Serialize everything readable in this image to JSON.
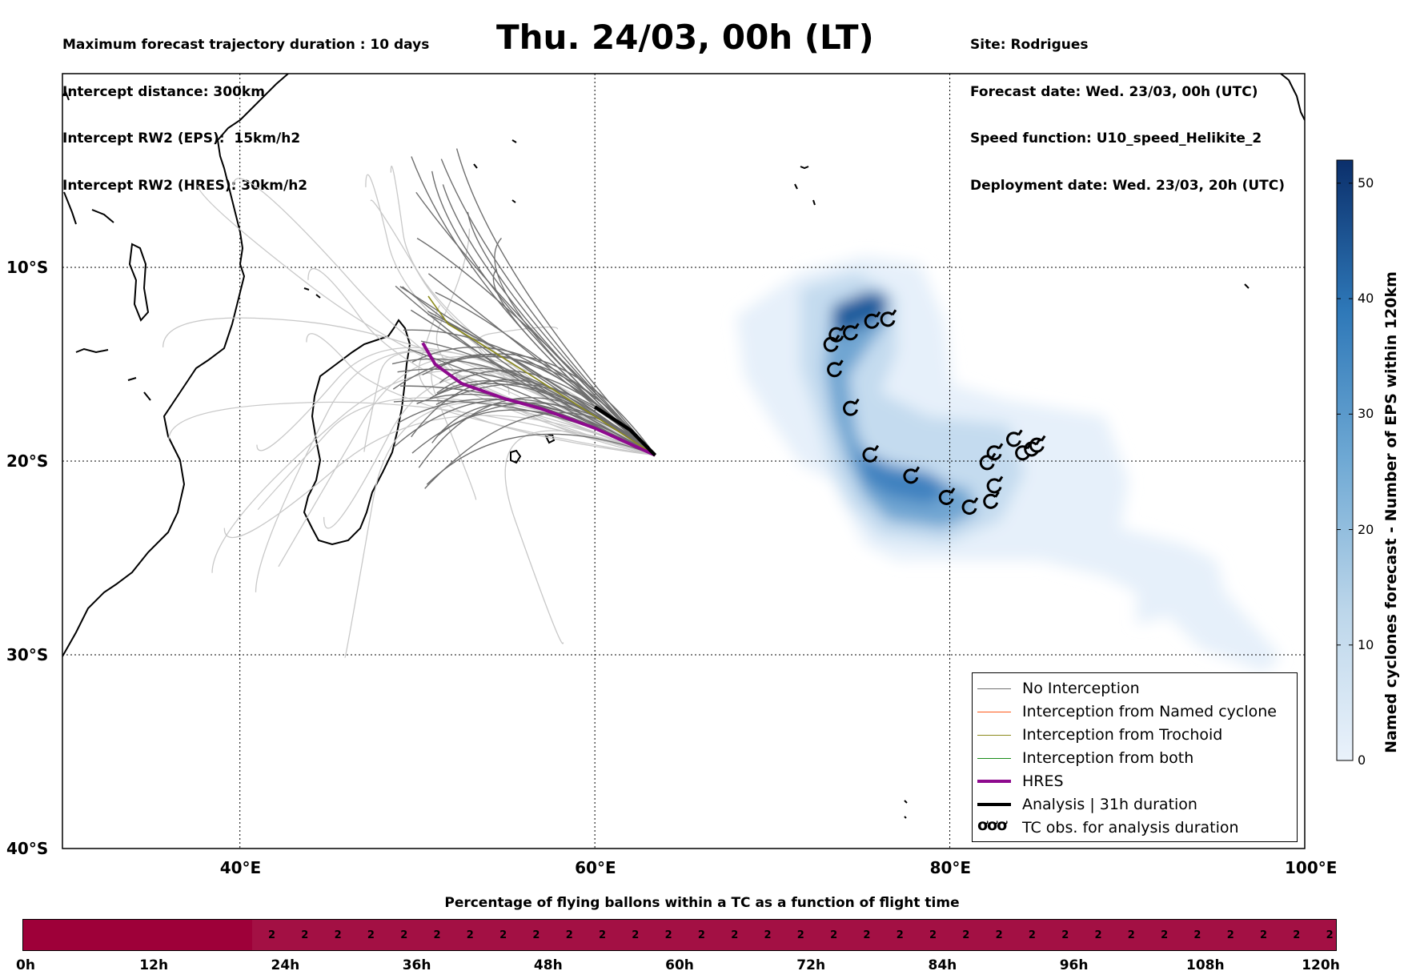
{
  "header": {
    "left_lines": [
      "Maximum forecast trajectory duration : 10 days",
      "Intercept distance: 300km",
      "Intercept RW2 (EPS):  15km/h2",
      "Intercept RW2 (HRES): 30km/h2"
    ],
    "title": "Thu. 24/03, 00h (LT)",
    "right_lines": [
      "Site: Rodrigues",
      "Forecast date: Wed. 23/03, 00h (UTC)",
      "Speed function: U10_speed_Helikite_2",
      "Deployment date: Wed. 23/03, 20h (UTC)"
    ]
  },
  "map": {
    "lon_range": [
      30,
      100
    ],
    "lat_range": [
      0,
      -40
    ],
    "lat_labels": [
      "10°S",
      "20°S",
      "30°S",
      "40°S"
    ],
    "lon_labels": [
      "40°E",
      "60°E",
      "80°E",
      "100°E"
    ],
    "gridlines": true,
    "colors": {
      "no_interception": "#6f6f6f",
      "far_tracks": "#c8c8c8",
      "named_cyclone": "#ff5a1a",
      "trochoid": "#8c8a1c",
      "both": "#1a8c1a",
      "hres": "#8e0a8e",
      "analysis": "#000000",
      "density": "#1c5fa2"
    },
    "deployment_point": {
      "lon": 63.4,
      "lat": -19.7
    },
    "hres_track": [
      [
        63.4,
        -19.7
      ],
      [
        60.0,
        -18.3
      ],
      [
        57.0,
        -17.3
      ],
      [
        55.0,
        -16.8
      ],
      [
        52.5,
        -16.0
      ],
      [
        51.0,
        -15.0
      ],
      [
        50.3,
        -13.9
      ]
    ],
    "analysis_track": [
      [
        63.4,
        -19.7
      ],
      [
        62.0,
        -18.4
      ],
      [
        60.0,
        -17.2
      ]
    ],
    "tc_obs": [
      [
        73.3,
        -14.0
      ],
      [
        73.6,
        -13.5
      ],
      [
        74.4,
        -13.4
      ],
      [
        75.6,
        -12.8
      ],
      [
        76.5,
        -12.7
      ],
      [
        73.5,
        -15.3
      ],
      [
        74.4,
        -17.3
      ],
      [
        75.5,
        -19.7
      ],
      [
        77.8,
        -20.8
      ],
      [
        79.8,
        -21.9
      ],
      [
        81.1,
        -22.4
      ],
      [
        82.3,
        -22.1
      ],
      [
        82.5,
        -21.3
      ],
      [
        82.1,
        -20.1
      ],
      [
        82.5,
        -19.6
      ],
      [
        83.6,
        -18.9
      ],
      [
        84.1,
        -19.6
      ],
      [
        84.6,
        -19.4
      ],
      [
        84.9,
        -19.2
      ]
    ]
  },
  "colorbar": {
    "title": "Named cyclones forecast - Number of EPS within 120km",
    "min": 0,
    "max": 52,
    "ticks": [
      "0",
      "10",
      "20",
      "30",
      "40",
      "50"
    ]
  },
  "legend": {
    "items": [
      {
        "label": "No Interception",
        "kind": "line",
        "color": "#6f6f6f"
      },
      {
        "label": "Interception from Named cyclone",
        "kind": "line",
        "color": "#ff5a1a"
      },
      {
        "label": "Interception from Trochoid",
        "kind": "line",
        "color": "#8c8a1c"
      },
      {
        "label": "Interception from both",
        "kind": "line",
        "color": "#1a8c1a"
      },
      {
        "label": "HRES",
        "kind": "thick",
        "color": "#8e0a8e"
      },
      {
        "label": "Analysis | 31h duration",
        "kind": "thick",
        "color": "#000000"
      },
      {
        "label": "TC obs. for analysis duration",
        "kind": "symbol",
        "symbol": "ơơơ"
      }
    ]
  },
  "bottom": {
    "title": "Percentage of flying ballons within a TC as a function of flight time",
    "time_ticks": [
      "0h",
      "12h",
      "24h",
      "36h",
      "48h",
      "60h",
      "72h",
      "84h",
      "96h",
      "108h",
      "120h"
    ],
    "bar_value_label": "2",
    "bar_value_count": 33,
    "colors": {
      "empty": "#9e0039",
      "filled": "#a31044"
    }
  }
}
